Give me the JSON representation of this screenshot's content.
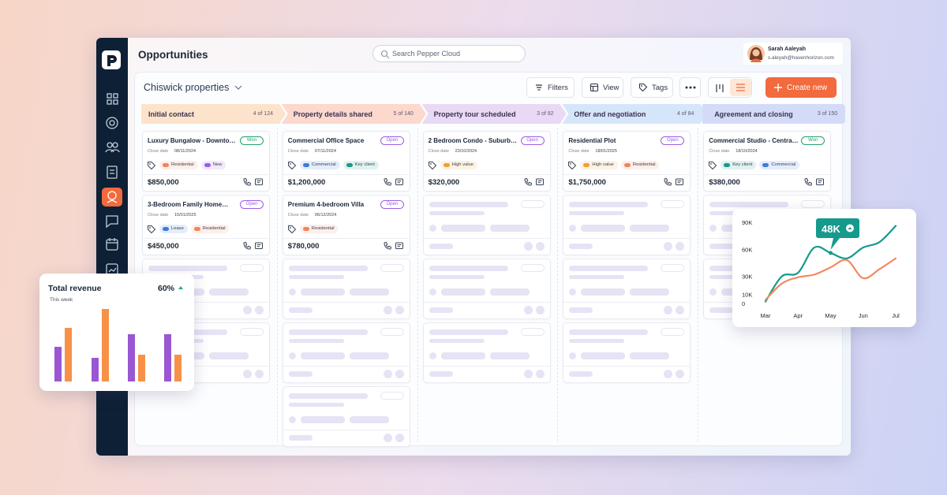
{
  "header": {
    "title": "Opportunities",
    "search": "Search Pepper Cloud",
    "user_name": "Sarah Aaleyah",
    "user_email": "s.aleyah@havenhorizon.com"
  },
  "toolbar": {
    "pipeline": "Chiswick properties",
    "buttons": [
      "Filters",
      "View",
      "Tags"
    ],
    "create": "Create new"
  },
  "close_date_label": "Close date",
  "stages": [
    {
      "name": "Initial contact",
      "count": "4 of 124",
      "color": "#fde3cc",
      "cards": [
        {
          "title": "Luxury Bungalow - Downto…",
          "status": {
            "text": "Won",
            "color": "#22a06b"
          },
          "date": "08/11/2024",
          "tags": [
            {
              "text": "Residential",
              "color": "#f2845c"
            },
            {
              "text": "New",
              "color": "#9b5de5"
            }
          ],
          "amount": "$850,000"
        },
        {
          "title": "3-Bedroom Family Home…",
          "status": {
            "text": "Open",
            "color": "#9b5de5"
          },
          "date": "15/01/2025",
          "tags": [
            {
              "text": "Lease",
              "color": "#3d7be0"
            },
            {
              "text": "Residential",
              "color": "#f2845c"
            }
          ],
          "amount": "$450,000"
        }
      ]
    },
    {
      "name": "Property details shared",
      "count": "5 of 140",
      "color": "#fcd8cd",
      "cards": [
        {
          "title": "Commercial Office Space",
          "status": {
            "text": "Open",
            "color": "#9b5de5"
          },
          "date": "07/11/2024",
          "tags": [
            {
              "text": "Commercial",
              "color": "#3d7be0"
            },
            {
              "text": "Key client",
              "color": "#1a9a8f"
            }
          ],
          "amount": "$1,200,000"
        },
        {
          "title": "Premium 4-bedroom Villa",
          "status": {
            "text": "Open",
            "color": "#9b5de5"
          },
          "date": "06/12/2024",
          "tags": [
            {
              "text": "Residential",
              "color": "#f2845c"
            }
          ],
          "amount": "$780,000"
        }
      ]
    },
    {
      "name": "Property tour scheduled",
      "count": "3 of 92",
      "color": "#ead9f5",
      "cards": [
        {
          "title": "2 Bedroom Condo - Suburb…",
          "status": {
            "text": "Open",
            "color": "#9b5de5"
          },
          "date": "23/10/2024",
          "tags": [
            {
              "text": "High value",
              "color": "#f0a030"
            }
          ],
          "amount": "$320,000"
        }
      ]
    },
    {
      "name": "Offer and negotiation",
      "count": "4 of 84",
      "color": "#d6e6fa",
      "cards": [
        {
          "title": "Residential Plot",
          "status": {
            "text": "Open",
            "color": "#9b5de5"
          },
          "date": "18/01/2025",
          "tags": [
            {
              "text": "High value",
              "color": "#f0a030"
            },
            {
              "text": "Residential",
              "color": "#f2845c"
            }
          ],
          "amount": "$1,750,000"
        }
      ]
    },
    {
      "name": "Agreement and closing",
      "count": "3 of 150",
      "color": "#d4dbf8",
      "cards": [
        {
          "title": "Commercial Studio - Centra…",
          "status": {
            "text": "Won",
            "color": "#22a06b"
          },
          "date": "18/10/2024",
          "tags": [
            {
              "text": "Key client",
              "color": "#1a9a8f"
            },
            {
              "text": "Commercial",
              "color": "#3d7be0"
            }
          ],
          "amount": "$380,000"
        }
      ]
    }
  ],
  "chart_data": [
    {
      "type": "bar",
      "title": "Total revenue",
      "subtitle": "This week",
      "change": "60%",
      "categories": [
        null,
        null,
        null,
        null
      ],
      "series": [
        {
          "color": "#9b57d3",
          "values": [
            44,
            30,
            60,
            60
          ]
        },
        {
          "color": "#f79148",
          "values": [
            68,
            92,
            34,
            34
          ]
        }
      ]
    },
    {
      "type": "line",
      "annotation": "48K",
      "categories": [
        "Mar",
        null,
        "Apr",
        null,
        "May",
        null,
        "Jun",
        null,
        "Jul"
      ],
      "series": [
        {
          "color": "#159a8c",
          "values": [
            2000,
            30000,
            34000,
            62000,
            56000,
            50000,
            62000,
            68000,
            86000
          ]
        },
        {
          "color": "#f4895f",
          "values": [
            4000,
            22000,
            29000,
            32000,
            40000,
            48000,
            28000,
            38000,
            50000
          ]
        }
      ],
      "ylim": [
        0,
        90000
      ],
      "yticks": [
        0,
        {
          "value": 10000,
          "label": "10K"
        },
        {
          "value": 30000,
          "label": "30K"
        },
        {
          "value": 60000,
          "label": "60K"
        },
        {
          "value": 90000,
          "label": "90K"
        }
      ]
    }
  ]
}
